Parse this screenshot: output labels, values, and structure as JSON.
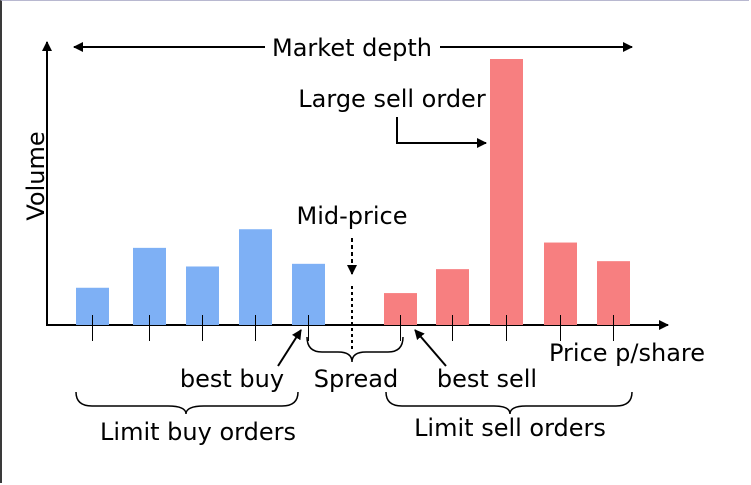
{
  "diagram": {
    "y_axis_label": "Volume",
    "x_axis_label": "Price p/share",
    "market_depth_label": "Market depth",
    "large_sell_order_label": "Large sell order",
    "mid_price_label": "Mid-price",
    "best_buy_label": "best buy",
    "spread_label": "Spread",
    "best_sell_label": "best sell",
    "limit_buy_label": "Limit buy orders",
    "limit_sell_label": "Limit sell orders",
    "buy_color": "#7eb0f5",
    "sell_color": "#f77f80",
    "buy_order_volumes": [
      0.14,
      0.29,
      0.22,
      0.36,
      0.23
    ],
    "sell_order_volumes": [
      0.12,
      0.21,
      1.0,
      0.31,
      0.24
    ]
  }
}
